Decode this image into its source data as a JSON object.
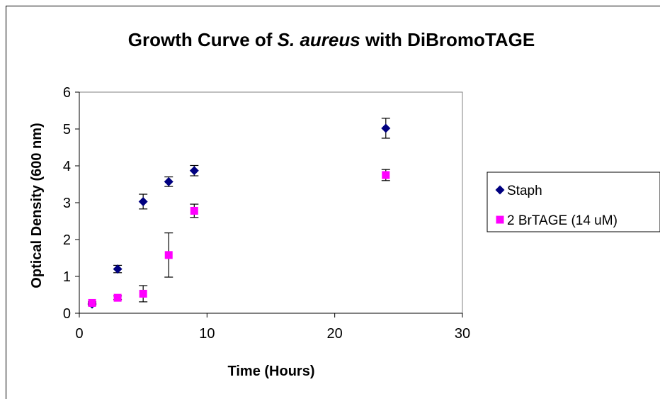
{
  "chart_data": {
    "type": "scatter",
    "title_parts": [
      {
        "text": "Growth Curve of ",
        "italic": false
      },
      {
        "text": "S. aureus",
        "italic": true
      },
      {
        "text": "  with DiBromoTAGE",
        "italic": false
      }
    ],
    "xlabel": "Time (Hours)",
    "ylabel": "Optical Density (600 nm)",
    "xlim": [
      0,
      30
    ],
    "ylim": [
      0,
      6
    ],
    "xticks": [
      0,
      10,
      20,
      30
    ],
    "yticks": [
      0,
      1,
      2,
      3,
      4,
      5,
      6
    ],
    "grid": false,
    "legend_position": "right",
    "series": [
      {
        "name": "Staph",
        "marker": "diamond",
        "color": "#000080",
        "x": [
          1,
          3,
          5,
          7,
          9,
          24
        ],
        "y": [
          0.25,
          1.2,
          3.03,
          3.57,
          3.87,
          5.02
        ],
        "err": [
          0.03,
          0.1,
          0.2,
          0.13,
          0.14,
          0.27
        ]
      },
      {
        "name": "2 BrTAGE (14 uM)",
        "marker": "square",
        "color": "#FF00FF",
        "x": [
          1,
          3,
          5,
          7,
          9,
          24
        ],
        "y": [
          0.28,
          0.42,
          0.53,
          1.58,
          2.78,
          3.75
        ],
        "err": [
          0.03,
          0.05,
          0.22,
          0.6,
          0.18,
          0.15
        ]
      }
    ]
  }
}
